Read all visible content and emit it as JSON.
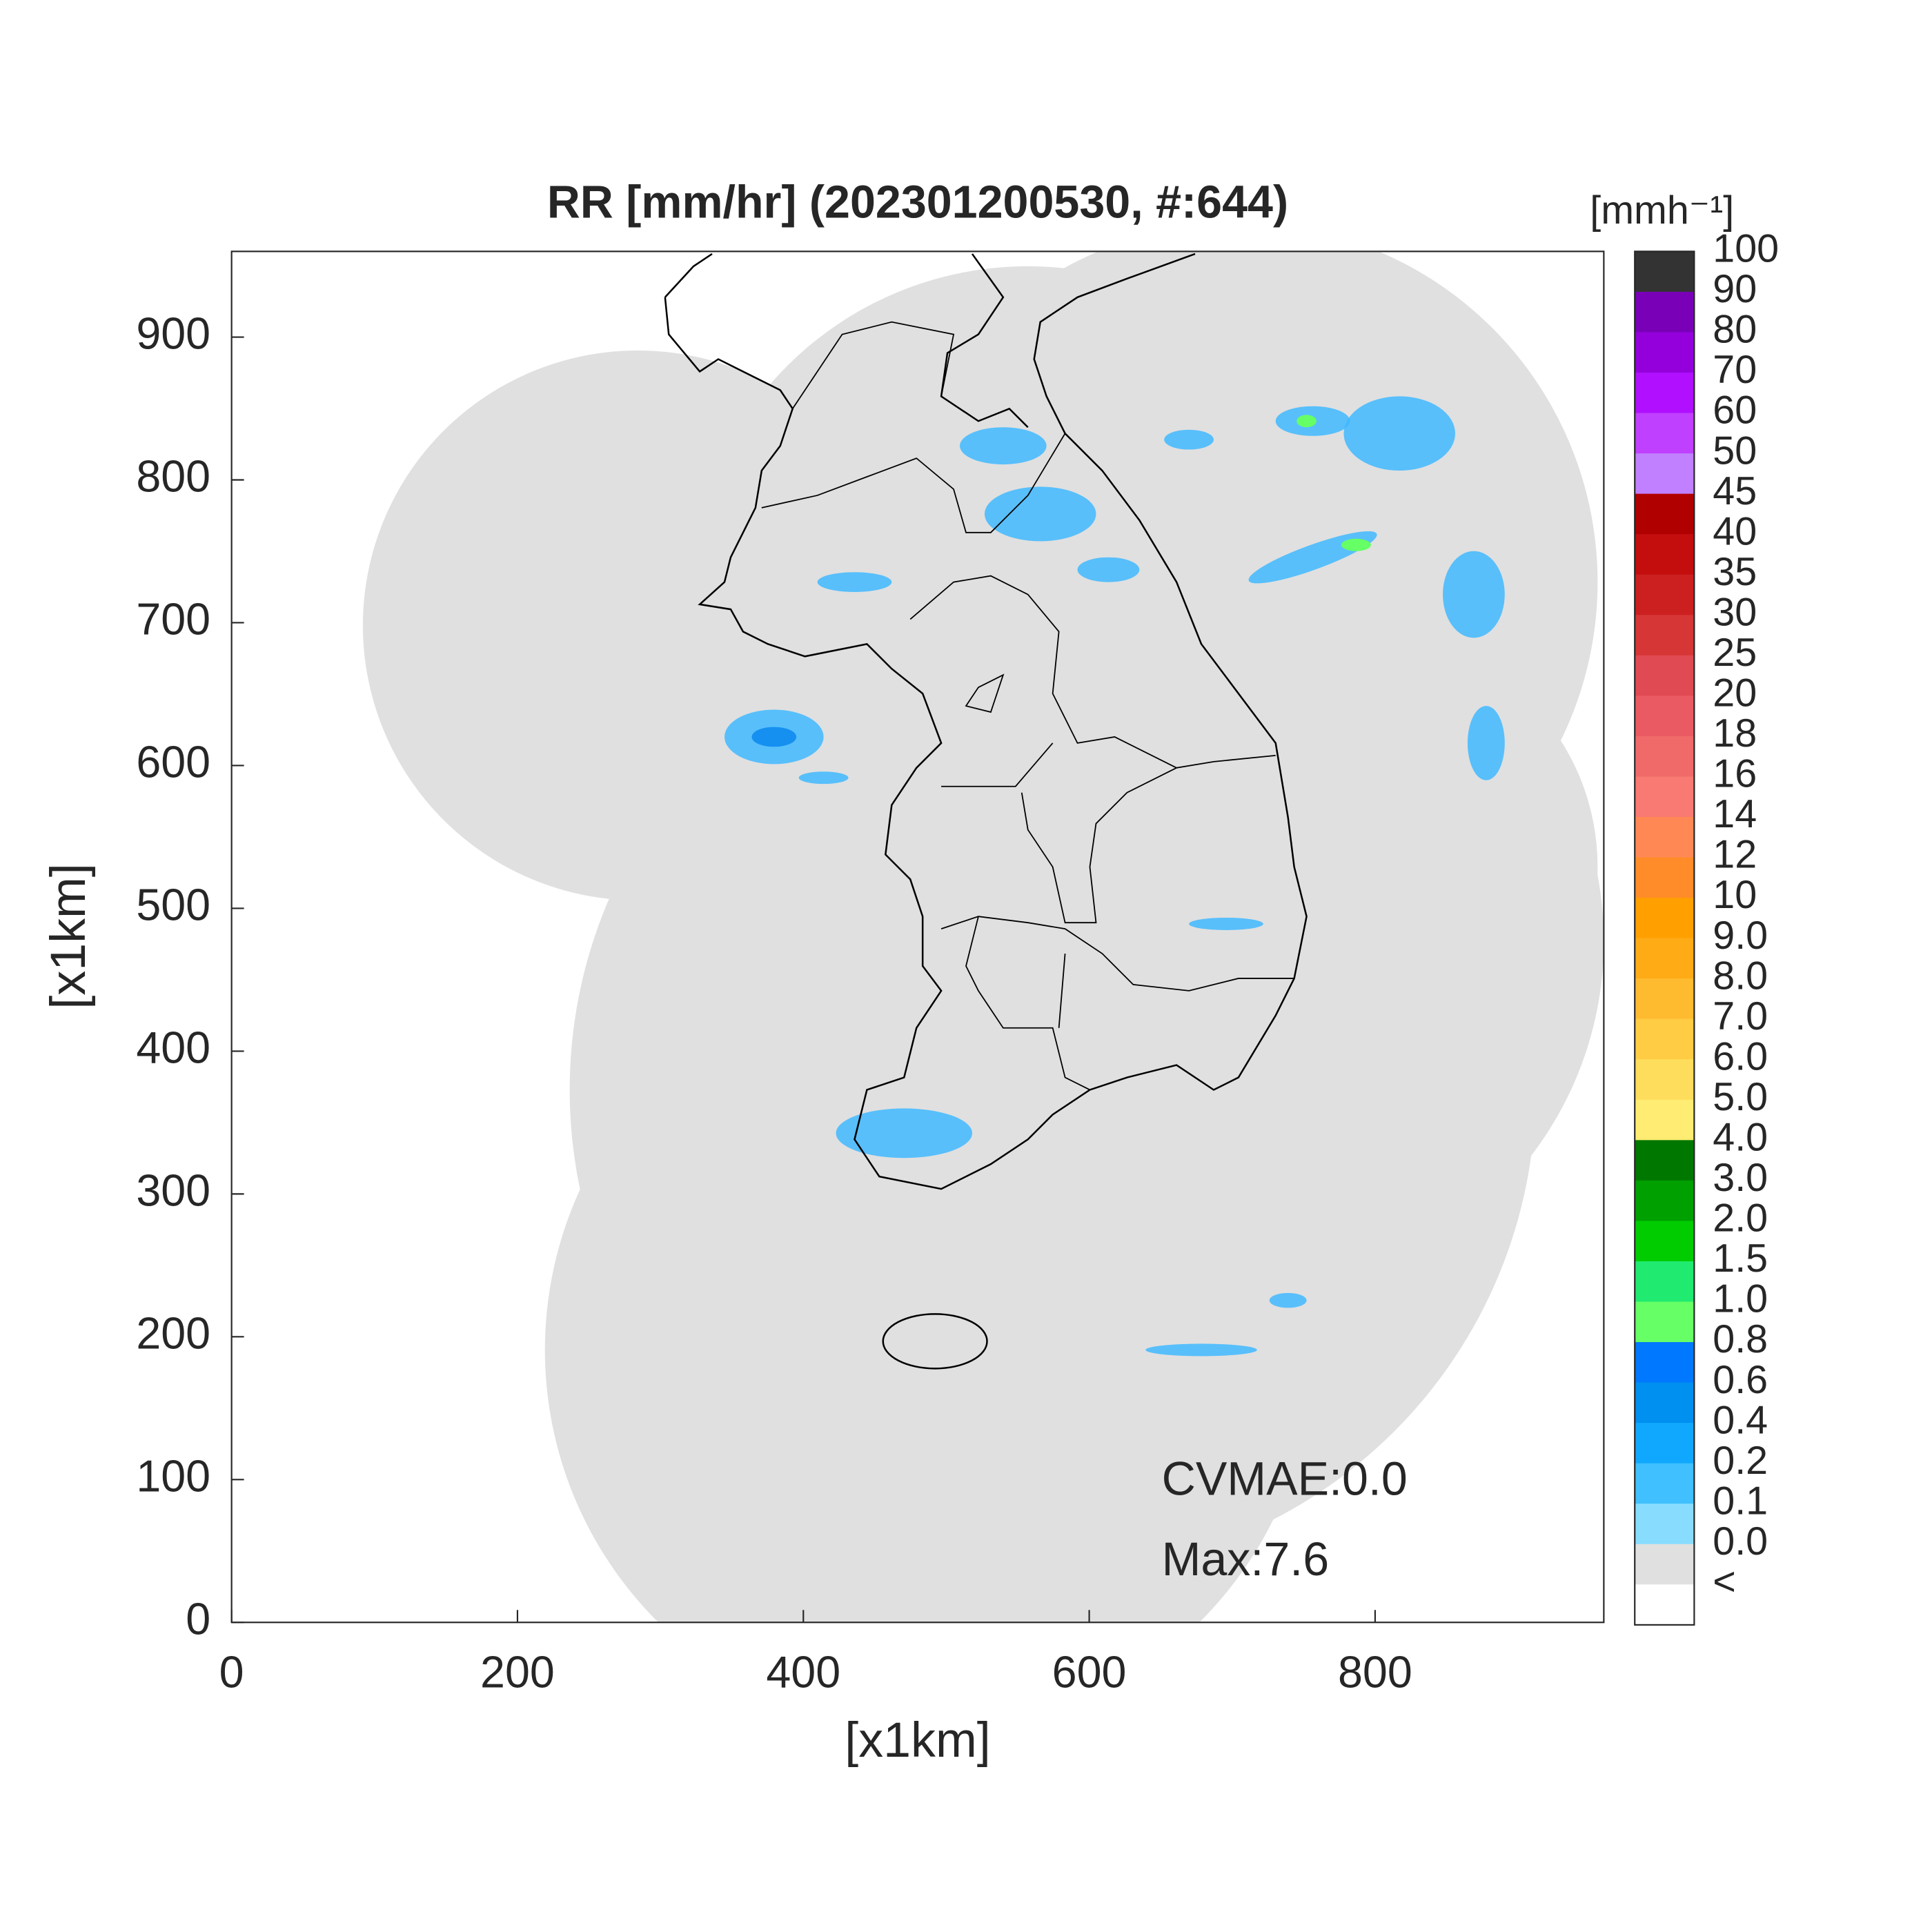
{
  "chart_data": {
    "type": "map",
    "title": "RR [mm/hr] (202301200530, #:644)",
    "x_label": "[x1km]",
    "y_label": "[x1km]",
    "xlim": [
      0,
      960
    ],
    "ylim": [
      0,
      960
    ],
    "xticks": [
      0,
      200,
      400,
      600,
      800
    ],
    "yticks": [
      0,
      100,
      200,
      300,
      400,
      500,
      600,
      700,
      800,
      900
    ],
    "annotations": [
      "CVMAE:0.0",
      "Max:7.6"
    ],
    "colorbar": {
      "title": "[mmh⁻¹]",
      "ticks": [
        100,
        90,
        80,
        70,
        60,
        50,
        45,
        40,
        35,
        30,
        25,
        20,
        18,
        16,
        14,
        12,
        10,
        {
          "value": 9,
          "label": "9.0"
        },
        {
          "value": 8,
          "label": "8.0"
        },
        {
          "value": 7,
          "label": "7.0"
        },
        {
          "value": 6,
          "label": "6.0"
        },
        {
          "value": 5,
          "label": "5.0"
        },
        {
          "value": 4,
          "label": "4.0"
        },
        {
          "value": 3,
          "label": "3.0"
        },
        {
          "value": 2,
          "label": "2.0"
        },
        1.5,
        {
          "value": 1,
          "label": "1.0"
        },
        0.8,
        0.6,
        0.4,
        0.2,
        0.1,
        {
          "value": 0,
          "label": "0.0"
        }
      ],
      "under_label": "<",
      "colors": [
        "#333333",
        "#7a00b8",
        "#9400dc",
        "#b010ff",
        "#c040ff",
        "#c080ff",
        "#b00000",
        "#c40e0e",
        "#cc2020",
        "#d63636",
        "#e04a52",
        "#ea5a62",
        "#f06a6a",
        "#f87a72",
        "#ff8855",
        "#ff8c28",
        "#ffa000",
        "#ffab16",
        "#ffbb30",
        "#ffcc44",
        "#ffdd5c",
        "#ffec72",
        "#007800",
        "#00a000",
        "#00cc00",
        "#20ea70",
        "#66ff66",
        "#0078ff",
        "#0090f0",
        "#10a8ff",
        "#40c0ff",
        "#88ddff",
        "#e0e0e0",
        "#ffffff"
      ]
    }
  }
}
